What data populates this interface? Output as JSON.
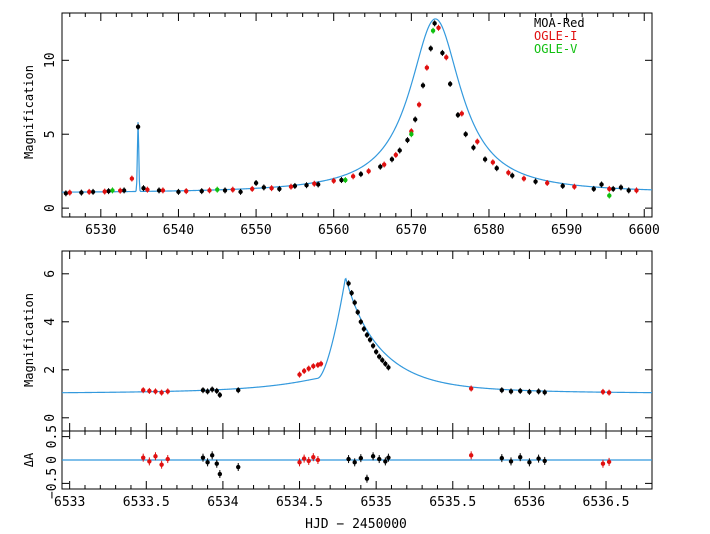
{
  "chart_data": [
    {
      "type": "scatter",
      "panel": "top",
      "xlim": [
        6525,
        6601
      ],
      "ylim": [
        -0.6,
        13.2
      ],
      "xticks": [
        6530,
        6540,
        6550,
        6560,
        6570,
        6580,
        6590,
        6600
      ],
      "yticks": [
        0,
        5,
        10
      ],
      "xtick_labels": [
        "6530",
        "6540",
        "6550",
        "6560",
        "6570",
        "6580",
        "6590",
        "6600"
      ],
      "ytick_labels": [
        "0",
        "5",
        "10"
      ],
      "ylabel": "Magnification",
      "legend": {
        "placement": "top-right",
        "entries": [
          {
            "label": "MOA-Red",
            "color": "#000000"
          },
          {
            "label": "OGLE-I",
            "color": "#e01010"
          },
          {
            "label": "OGLE-V",
            "color": "#10c010"
          }
        ]
      },
      "model": {
        "name": "model",
        "color": "#3399dd",
        "baseline": 1.0,
        "peak_time": 6573.1,
        "peak_magnification": 12.8,
        "anomaly": {
          "time": 6534.8,
          "magnification": 5.9
        }
      },
      "series": [
        {
          "name": "MOA-Red",
          "color": "#000000",
          "x": [
            6525.5,
            6527.5,
            6529.0,
            6531.0,
            6533.0,
            6534.8,
            6535.5,
            6537.5,
            6540.0,
            6543.0,
            6546.0,
            6548.0,
            6550.0,
            6551.0,
            6553.0,
            6555.0,
            6556.5,
            6558.0,
            6561.0,
            6563.5,
            6566.0,
            6567.5,
            6568.5,
            6569.5,
            6570.5,
            6571.5,
            6572.5,
            6573.0,
            6574.0,
            6575.0,
            6576.0,
            6577.0,
            6578.0,
            6579.5,
            6581.0,
            6583.0,
            6586.0,
            6589.5,
            6593.5,
            6594.5,
            6596.0,
            6597.0,
            6598.0
          ],
          "y": [
            1.0,
            1.05,
            1.1,
            1.15,
            1.2,
            5.5,
            1.35,
            1.2,
            1.1,
            1.15,
            1.2,
            1.1,
            1.7,
            1.4,
            1.3,
            1.5,
            1.55,
            1.6,
            1.9,
            2.3,
            2.8,
            3.3,
            3.9,
            4.6,
            6.0,
            8.3,
            10.8,
            12.5,
            10.5,
            8.4,
            6.3,
            5.0,
            4.1,
            3.3,
            2.7,
            2.2,
            1.8,
            1.5,
            1.3,
            1.6,
            1.3,
            1.4,
            1.2
          ]
        },
        {
          "name": "OGLE-I",
          "color": "#e01010",
          "x": [
            6526.0,
            6528.5,
            6530.5,
            6532.5,
            6534.0,
            6536.0,
            6538.0,
            6541.0,
            6544.0,
            6547.0,
            6549.5,
            6552.0,
            6554.5,
            6557.5,
            6560.0,
            6562.5,
            6564.5,
            6566.5,
            6568.0,
            6570.0,
            6571.0,
            6572.0,
            6573.5,
            6574.5,
            6576.5,
            6578.5,
            6580.5,
            6582.5,
            6584.5,
            6587.5,
            6591.0,
            6595.5,
            6599.0
          ],
          "y": [
            1.05,
            1.1,
            1.12,
            1.18,
            2.0,
            1.25,
            1.2,
            1.15,
            1.2,
            1.25,
            1.3,
            1.35,
            1.45,
            1.65,
            1.85,
            2.15,
            2.5,
            2.95,
            3.6,
            5.2,
            7.0,
            9.5,
            12.2,
            10.2,
            6.4,
            4.5,
            3.1,
            2.4,
            2.0,
            1.7,
            1.45,
            1.3,
            1.2
          ]
        },
        {
          "name": "OGLE-V",
          "color": "#10c010",
          "x": [
            6531.5,
            6545.0,
            6561.5,
            6570.0,
            6572.8,
            6595.5
          ],
          "y": [
            1.2,
            1.25,
            1.9,
            5.0,
            12.0,
            0.85
          ]
        }
      ]
    },
    {
      "type": "scatter",
      "panel": "middle",
      "xlim": [
        6532.95,
        6536.8
      ],
      "ylim": [
        -0.55,
        6.95
      ],
      "yticks": [
        0,
        2,
        4,
        6
      ],
      "ytick_labels": [
        "0",
        "2",
        "4",
        "6"
      ],
      "ylabel": "Magnification",
      "model": {
        "name": "model",
        "color": "#3399dd",
        "baseline": 1.0,
        "peak_time": 6534.8,
        "peak_magnification": 5.85,
        "entry_time": 6534.62,
        "entry_magnification": 2.25
      },
      "series": [
        {
          "name": "MOA-Red",
          "color": "#000000",
          "x": [
            6533.87,
            6533.9,
            6533.93,
            6533.96,
            6533.98,
            6534.1,
            6534.82,
            6534.84,
            6534.86,
            6534.88,
            6534.9,
            6534.92,
            6534.94,
            6534.96,
            6534.98,
            6535.0,
            6535.02,
            6535.04,
            6535.06,
            6535.08,
            6535.82,
            6535.88,
            6535.94,
            6536.0,
            6536.06,
            6536.1
          ],
          "y": [
            1.15,
            1.1,
            1.18,
            1.12,
            0.95,
            1.15,
            5.6,
            5.2,
            4.8,
            4.4,
            4.0,
            3.7,
            3.45,
            3.25,
            3.0,
            2.75,
            2.55,
            2.4,
            2.25,
            2.1,
            1.15,
            1.1,
            1.12,
            1.08,
            1.1,
            1.06
          ]
        },
        {
          "name": "OGLE-I",
          "color": "#e01010",
          "x": [
            6533.48,
            6533.52,
            6533.56,
            6533.6,
            6533.64,
            6534.5,
            6534.53,
            6534.56,
            6534.59,
            6534.62,
            6534.64,
            6535.62,
            6536.48,
            6536.52
          ],
          "y": [
            1.15,
            1.12,
            1.1,
            1.05,
            1.1,
            1.8,
            1.95,
            2.05,
            2.15,
            2.2,
            2.25,
            1.22,
            1.08,
            1.05
          ]
        }
      ]
    },
    {
      "type": "scatter",
      "panel": "residuals",
      "xlim": [
        6532.95,
        6536.8
      ],
      "ylim": [
        -0.62,
        0.62
      ],
      "xticks": [
        6533,
        6533.5,
        6534,
        6534.5,
        6535,
        6535.5,
        6536,
        6536.5
      ],
      "xtick_labels": [
        "6533",
        "6533.5",
        "6534",
        "6534.5",
        "6535",
        "6535.5",
        "6536",
        "6536.5"
      ],
      "yticks": [
        -0.5,
        0,
        0.5
      ],
      "ytick_labels": [
        "−0.5",
        "0",
        "0.5"
      ],
      "ylabel": "ΔA",
      "xlabel": "HJD − 2450000",
      "series": [
        {
          "name": "MOA-Red",
          "color": "#000000",
          "x": [
            6533.87,
            6533.9,
            6533.93,
            6533.96,
            6533.98,
            6534.1,
            6534.82,
            6534.86,
            6534.9,
            6534.94,
            6534.98,
            6535.02,
            6535.06,
            6535.08,
            6535.82,
            6535.88,
            6535.94,
            6536.0,
            6536.06,
            6536.1
          ],
          "y": [
            0.05,
            -0.05,
            0.1,
            -0.08,
            -0.3,
            -0.15,
            0.02,
            -0.05,
            0.04,
            -0.4,
            0.08,
            0.02,
            -0.03,
            0.05,
            0.04,
            -0.03,
            0.06,
            -0.05,
            0.03,
            -0.02
          ]
        },
        {
          "name": "OGLE-I",
          "color": "#e01010",
          "x": [
            6533.48,
            6533.52,
            6533.56,
            6533.6,
            6533.64,
            6534.5,
            6534.53,
            6534.56,
            6534.59,
            6534.62,
            6535.62,
            6536.48,
            6536.52
          ],
          "y": [
            0.05,
            -0.03,
            0.08,
            -0.1,
            0.02,
            -0.05,
            0.03,
            -0.02,
            0.06,
            0.0,
            0.1,
            -0.08,
            -0.04
          ]
        }
      ]
    }
  ]
}
